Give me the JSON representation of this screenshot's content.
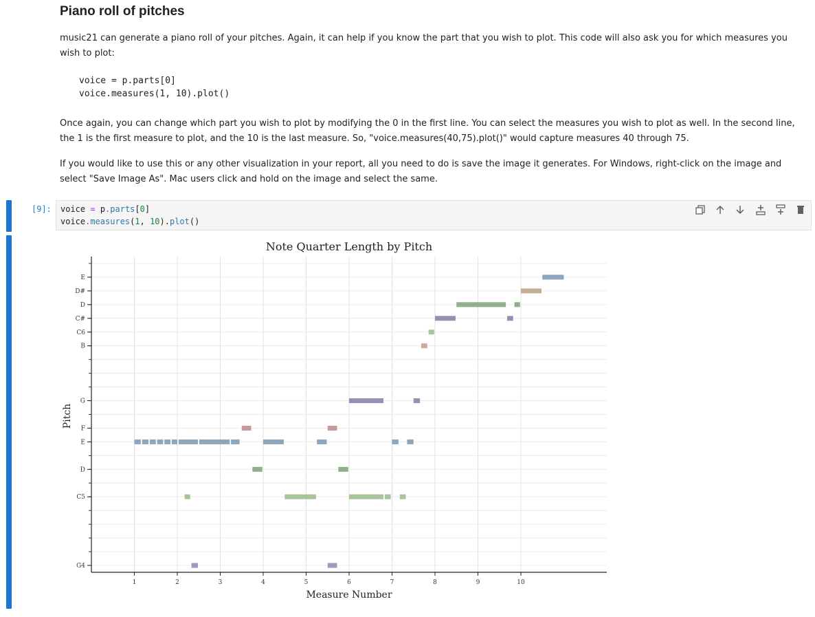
{
  "markdown": {
    "heading": "Piano roll of pitches",
    "para1": "music21 can generate a piano roll of your pitches. Again, it can help if you know the part that you wish to plot. This code will also ask you for which measures you wish to plot:",
    "code_line1": "voice = p.parts[0]",
    "code_line2": "voice.measures(1, 10).plot()",
    "para2": "Once again, you can change which part you wish to plot by modifying the 0 in the first line. You can select the measures you wish to plot as well. In the second line, the 1 is the first measure to plot, and the 10 is the last measure. So, \"voice.measures(40,75).plot()\" would capture measures 40 through 75.",
    "para3": "If you would like to use this or any other visualization in your report, all you need to do is save the image it generates. For Windows, right-click on the image and select \"Save Image As\". Mac users click and hold on the image and select the same."
  },
  "cell": {
    "prompt": "[9]:",
    "line1": {
      "a": "voice",
      "b": " = ",
      "c": "p",
      "d": ".",
      "e": "parts",
      "f": "[",
      "g": "0",
      "h": "]"
    },
    "line2": {
      "a": "voice",
      "b": ".",
      "c": "measures",
      "d": "(",
      "e": "1",
      "f": ", ",
      "g": "10",
      "h": ").",
      "i": "plot",
      "j": "()"
    },
    "toolbar_icons": [
      "copy-icon",
      "move-up-icon",
      "move-down-icon",
      "insert-above-icon",
      "insert-below-icon",
      "delete-icon"
    ]
  },
  "chart_data": {
    "type": "piano-roll",
    "title": "Note Quarter Length by Pitch",
    "xlabel": "Measure Number",
    "ylabel": "Pitch",
    "xlim": [
      0,
      12
    ],
    "x_ticks": [
      1,
      2,
      3,
      4,
      5,
      6,
      7,
      8,
      9,
      10
    ],
    "ylim": [
      66.5,
      89.5
    ],
    "y_ticks": [
      {
        "midi": 67,
        "label": "G4"
      },
      {
        "midi": 72,
        "label": "C5"
      },
      {
        "midi": 74,
        "label": "D"
      },
      {
        "midi": 76,
        "label": "E"
      },
      {
        "midi": 77,
        "label": "F"
      },
      {
        "midi": 79,
        "label": "G"
      },
      {
        "midi": 83,
        "label": "B"
      },
      {
        "midi": 84,
        "label": "C6"
      },
      {
        "midi": 85,
        "label": "C#"
      },
      {
        "midi": 86,
        "label": "D"
      },
      {
        "midi": 87,
        "label": "D#"
      },
      {
        "midi": 88,
        "label": "E"
      }
    ],
    "grid": true,
    "notes": [
      {
        "start": 1.0,
        "end": 1.15,
        "midi": 76,
        "color": "#8ea6bb"
      },
      {
        "start": 1.18,
        "end": 1.33,
        "midi": 76,
        "color": "#8ea6bb"
      },
      {
        "start": 1.36,
        "end": 1.5,
        "midi": 76,
        "color": "#8ea6bb"
      },
      {
        "start": 1.53,
        "end": 1.67,
        "midi": 76,
        "color": "#8ea6bb"
      },
      {
        "start": 1.7,
        "end": 1.84,
        "midi": 76,
        "color": "#8ea6bb"
      },
      {
        "start": 1.87,
        "end": 2.0,
        "midi": 76,
        "color": "#8ea6bb"
      },
      {
        "start": 2.03,
        "end": 2.48,
        "midi": 76,
        "color": "#8ea6bb"
      },
      {
        "start": 2.51,
        "end": 3.22,
        "midi": 76,
        "color": "#8ea6bb"
      },
      {
        "start": 3.25,
        "end": 3.45,
        "midi": 76,
        "color": "#8ea6bb"
      },
      {
        "start": 2.17,
        "end": 2.3,
        "midi": 72,
        "color": "#a8c49a"
      },
      {
        "start": 2.33,
        "end": 2.48,
        "midi": 67,
        "color": "#9c9bbf"
      },
      {
        "start": 3.5,
        "end": 3.72,
        "midi": 77,
        "color": "#c99a9a"
      },
      {
        "start": 3.75,
        "end": 3.98,
        "midi": 74,
        "color": "#8fb08a"
      },
      {
        "start": 4.0,
        "end": 4.48,
        "midi": 76,
        "color": "#8ea6bb"
      },
      {
        "start": 4.5,
        "end": 5.23,
        "midi": 72,
        "color": "#a8c49a"
      },
      {
        "start": 5.25,
        "end": 5.48,
        "midi": 76,
        "color": "#8ea6bb"
      },
      {
        "start": 5.5,
        "end": 5.72,
        "midi": 77,
        "color": "#c99a9a"
      },
      {
        "start": 5.5,
        "end": 5.72,
        "midi": 67,
        "color": "#9c9bbf"
      },
      {
        "start": 5.75,
        "end": 5.98,
        "midi": 74,
        "color": "#8fb08a"
      },
      {
        "start": 6.0,
        "end": 6.8,
        "midi": 79,
        "color": "#9690b5"
      },
      {
        "start": 6.0,
        "end": 6.8,
        "midi": 72,
        "color": "#a8c49a"
      },
      {
        "start": 6.83,
        "end": 6.97,
        "midi": 72,
        "color": "#a8c49a"
      },
      {
        "start": 7.0,
        "end": 7.15,
        "midi": 76,
        "color": "#8ea6bb"
      },
      {
        "start": 7.18,
        "end": 7.32,
        "midi": 72,
        "color": "#a8c49a"
      },
      {
        "start": 7.35,
        "end": 7.5,
        "midi": 76,
        "color": "#8ea6bb"
      },
      {
        "start": 7.5,
        "end": 7.65,
        "midi": 79,
        "color": "#9690b5"
      },
      {
        "start": 7.68,
        "end": 7.82,
        "midi": 83,
        "color": "#d1a8a0"
      },
      {
        "start": 7.85,
        "end": 7.98,
        "midi": 84,
        "color": "#a8c49a"
      },
      {
        "start": 8.0,
        "end": 8.48,
        "midi": 85,
        "color": "#9690b5"
      },
      {
        "start": 8.5,
        "end": 9.65,
        "midi": 86,
        "color": "#8fb08a"
      },
      {
        "start": 9.68,
        "end": 9.82,
        "midi": 85,
        "color": "#9690b5"
      },
      {
        "start": 9.85,
        "end": 9.98,
        "midi": 86,
        "color": "#8fb08a"
      },
      {
        "start": 10.0,
        "end": 10.48,
        "midi": 87,
        "color": "#c4ae96"
      },
      {
        "start": 10.5,
        "end": 11.0,
        "midi": 88,
        "color": "#8ea6bb"
      }
    ]
  }
}
